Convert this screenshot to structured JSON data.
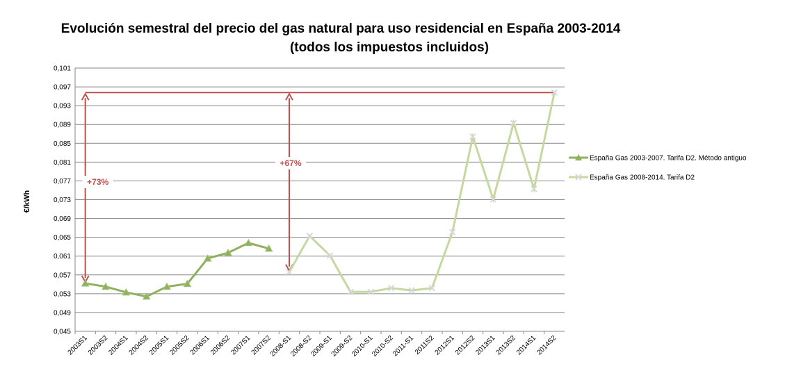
{
  "chart_data": {
    "type": "line",
    "title": "Evolución semestral del precio del gas natural para uso residencial en España 2003-2014",
    "subtitle": "(todos los impuestos incluidos)",
    "y_label": "€/kWh",
    "categories": [
      "2003S1",
      "2003S2",
      "2004S1",
      "2004S2",
      "2005S1",
      "2005S2",
      "2006S1",
      "2006S2",
      "2007S1",
      "2007S2",
      "2008-S1",
      "2008-S2",
      "2009-S1",
      "2009-S2",
      "2010-S1",
      "2010-S2",
      "2011-S1",
      "2011S2",
      "2012S1",
      "2012S2",
      "2013S1",
      "2013S2",
      "2014S1",
      "2014S2"
    ],
    "series": [
      {
        "name": "España Gas 2003-2007. Tarifa D2. Método antiguo",
        "color": "#8fb05c",
        "marker": "triangle",
        "values": [
          0.0552,
          0.0545,
          0.0533,
          0.0524,
          0.0545,
          0.0551,
          0.0605,
          0.0617,
          0.0638,
          0.0626,
          null,
          null,
          null,
          null,
          null,
          null,
          null,
          null,
          null,
          null,
          null,
          null,
          null,
          null
        ]
      },
      {
        "name": "España Gas 2008-2014. Tarifa D2",
        "color": "#c5d8a0",
        "marker": "x",
        "values": [
          null,
          null,
          null,
          null,
          null,
          null,
          null,
          null,
          null,
          null,
          0.0576,
          0.0653,
          0.0611,
          0.0534,
          0.0534,
          0.0542,
          0.0537,
          0.0542,
          0.0661,
          0.0864,
          0.0731,
          0.0893,
          0.0753,
          0.0958
        ]
      }
    ],
    "annotations": [
      "+73%",
      "+67%"
    ],
    "ylim": [
      0.045,
      0.101
    ],
    "yticks": [
      {
        "value": 0.045,
        "label": "0,045"
      },
      {
        "value": 0.049,
        "label": "0,049"
      },
      {
        "value": 0.053,
        "label": "0,053"
      },
      {
        "value": 0.057,
        "label": "0,057"
      },
      {
        "value": 0.061,
        "label": "0,061"
      },
      {
        "value": 0.065,
        "label": "0,065"
      },
      {
        "value": 0.069,
        "label": "0,069"
      },
      {
        "value": 0.073,
        "label": "0,073"
      },
      {
        "value": 0.077,
        "label": "0,077"
      },
      {
        "value": 0.081,
        "label": "0,081"
      },
      {
        "value": 0.085,
        "label": "0,085"
      },
      {
        "value": 0.089,
        "label": "0,089"
      },
      {
        "value": 0.093,
        "label": "0,093"
      },
      {
        "value": 0.097,
        "label": "0,097"
      },
      {
        "value": 0.101,
        "label": "0,101"
      }
    ],
    "grid": true,
    "legend": "right",
    "annotation_color": "#c0504d"
  }
}
